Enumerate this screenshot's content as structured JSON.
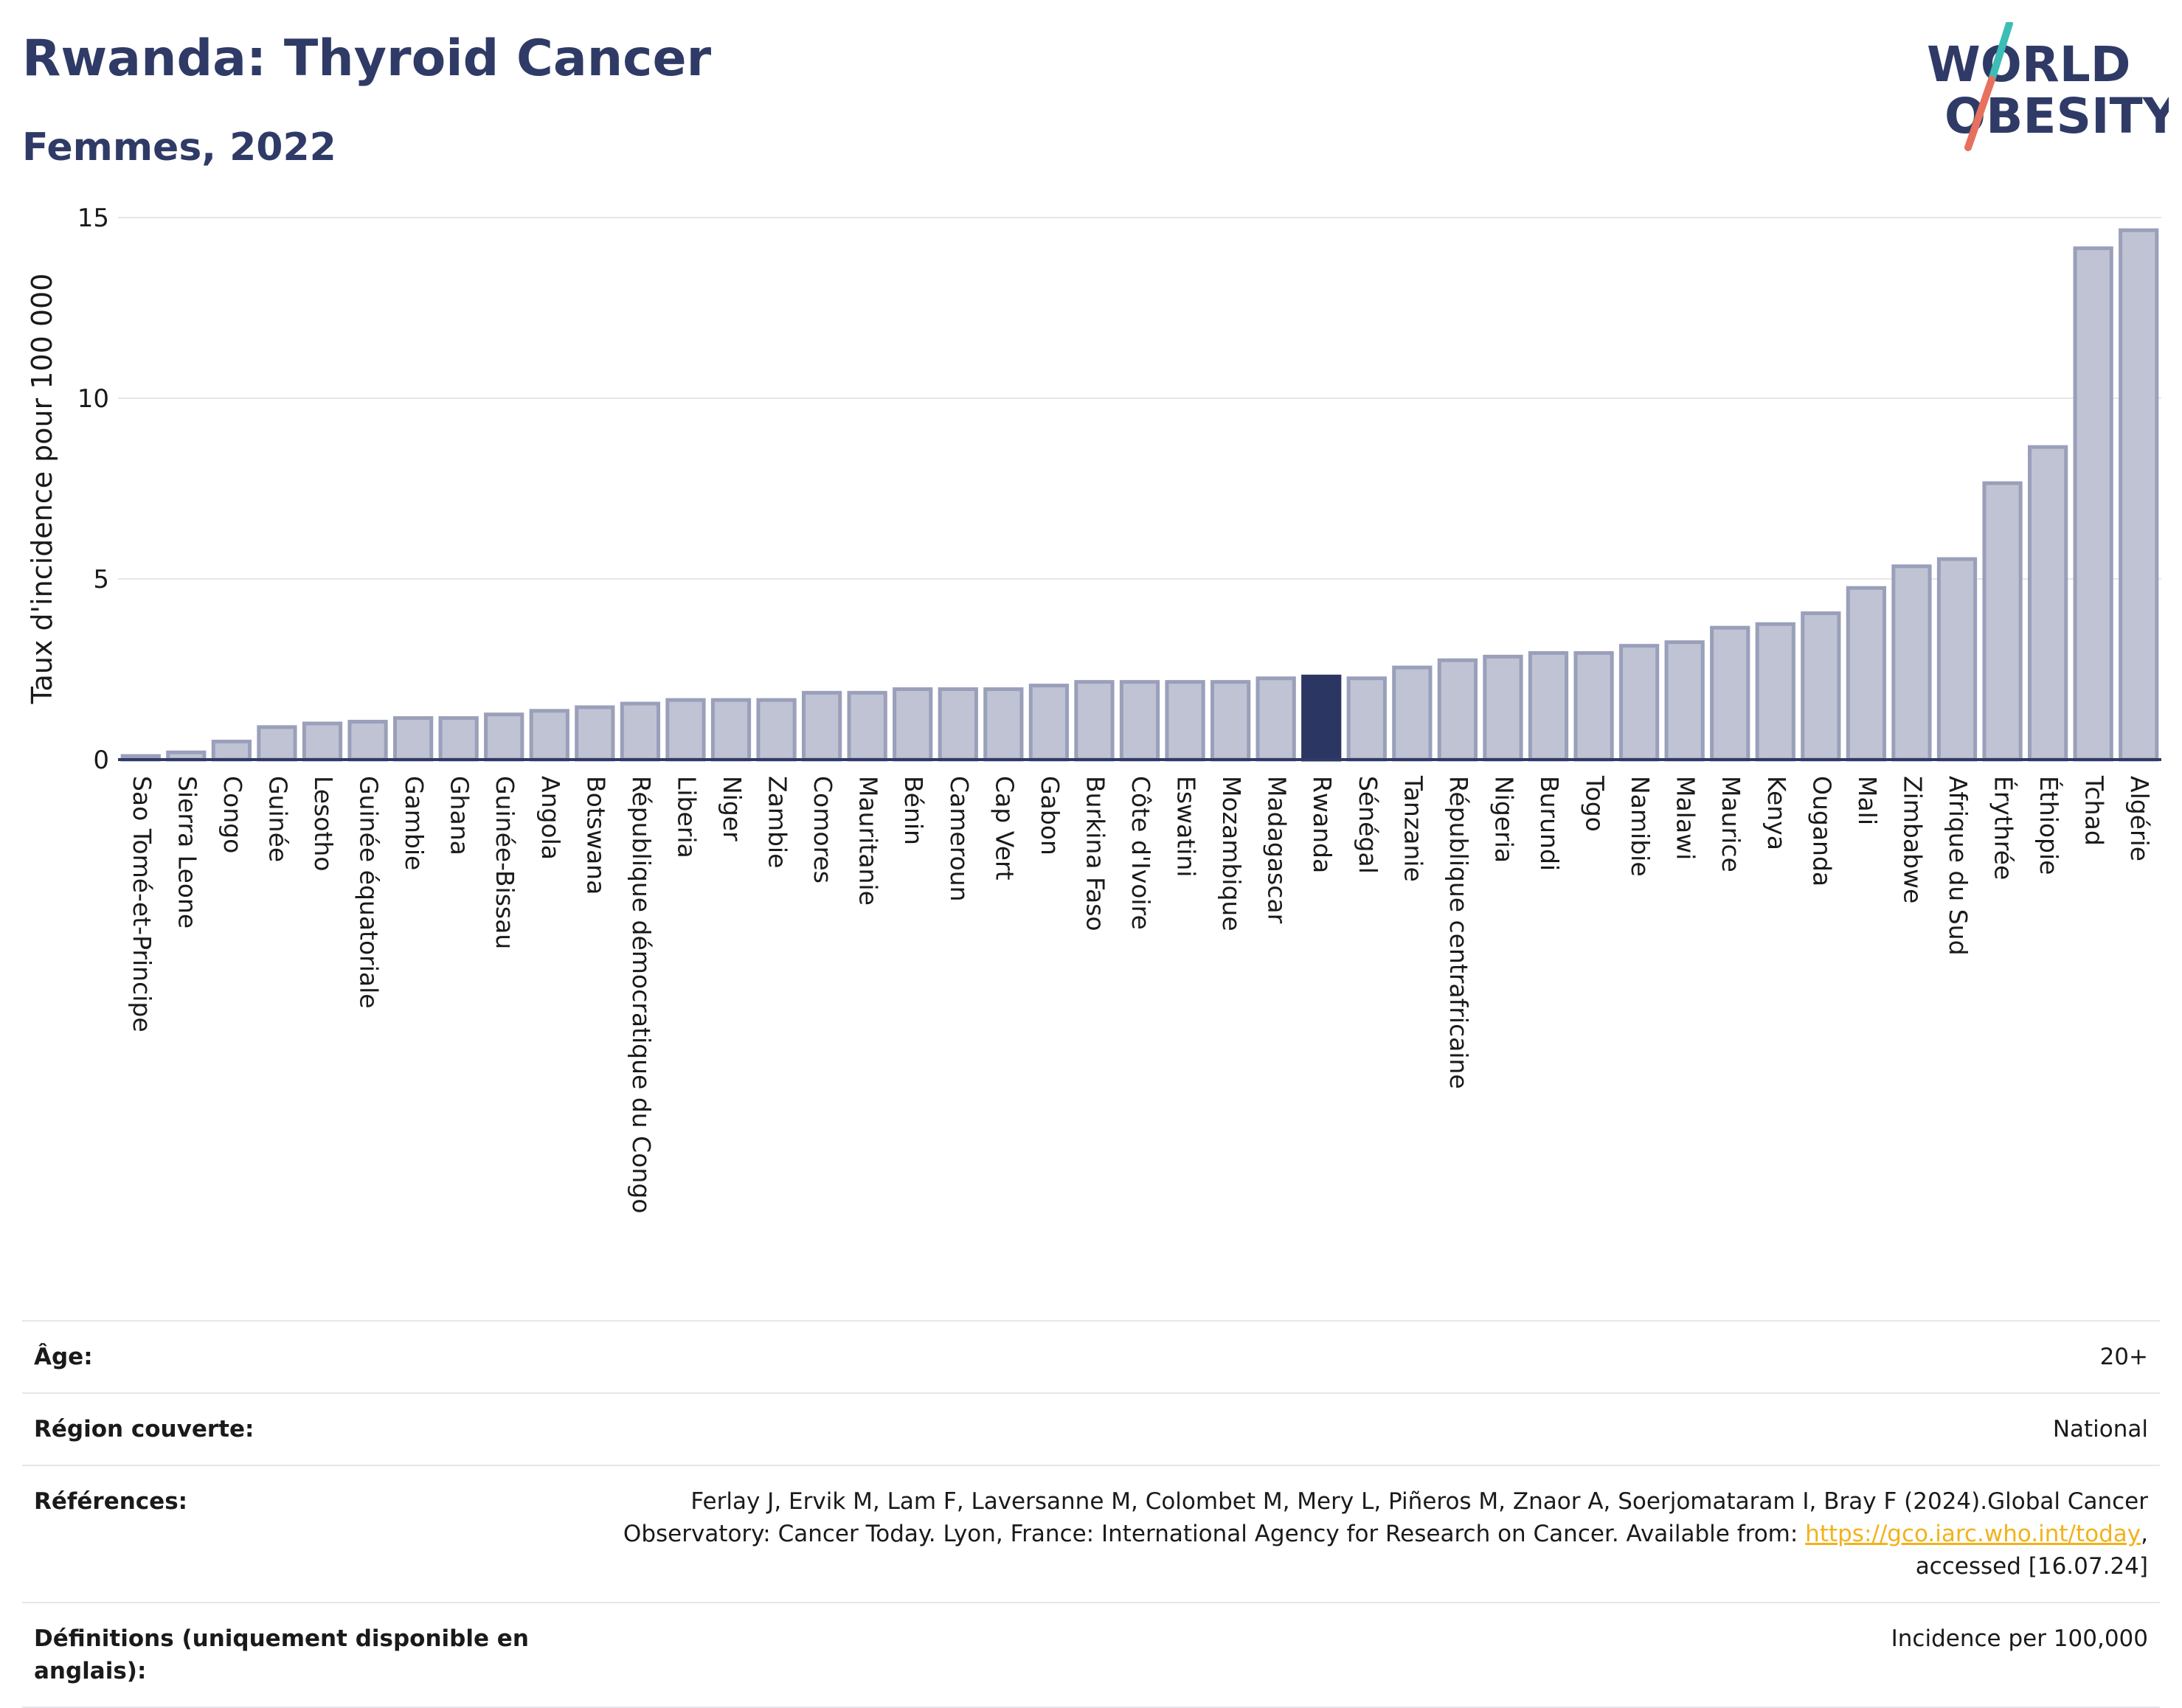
{
  "header": {
    "title": "Rwanda: Thyroid Cancer",
    "subtitle": "Femmes, 2022"
  },
  "logo": {
    "line1": "WORLD",
    "line2": "OBESITY"
  },
  "colors": {
    "highlight": "#2b3663",
    "bar": "#bfc3d3",
    "bar_outline": "#9a9fba",
    "axis": "#2f3b66",
    "grid": "#e6e6ea",
    "logo_text": "#2f3b66",
    "logo_slash_top": "#3cbdb5",
    "logo_slash_bottom": "#e8705f"
  },
  "chart_data": {
    "type": "bar",
    "ylabel": "Taux d'incidence pour 100 000",
    "ylim": [
      0,
      15
    ],
    "yticks": [
      0,
      5,
      10,
      15
    ],
    "grid": true,
    "highlight": "Rwanda",
    "categories": [
      "Sao Tomé-et-Principe",
      "Sierra Leone",
      "Congo",
      "Guinée",
      "Lesotho",
      "Guinée équatoriale",
      "Gambie",
      "Ghana",
      "Guinée-Bissau",
      "Angola",
      "Botswana",
      "République démocratique du Congo",
      "Liberia",
      "Niger",
      "Zambie",
      "Comores",
      "Mauritanie",
      "Bénin",
      "Cameroun",
      "Cap Vert",
      "Gabon",
      "Burkina Faso",
      "Côte d'Ivoire",
      "Eswatini",
      "Mozambique",
      "Madagascar",
      "Rwanda",
      "Sénégal",
      "Tanzanie",
      "République centrafricaine",
      "Nigeria",
      "Burundi",
      "Togo",
      "Namibie",
      "Malawi",
      "Maurice",
      "Kenya",
      "Ouganda",
      "Mali",
      "Zimbabwe",
      "Afrique du Sud",
      "Érythrée",
      "Éthiopie",
      "Tchad",
      "Algérie"
    ],
    "values": [
      0.1,
      0.2,
      0.5,
      0.9,
      1.0,
      1.05,
      1.15,
      1.15,
      1.25,
      1.35,
      1.45,
      1.55,
      1.65,
      1.65,
      1.65,
      1.85,
      1.85,
      1.95,
      1.95,
      1.95,
      2.05,
      2.15,
      2.15,
      2.15,
      2.15,
      2.25,
      2.3,
      2.25,
      2.55,
      2.75,
      2.85,
      2.95,
      2.95,
      3.15,
      3.25,
      3.65,
      3.75,
      4.05,
      4.75,
      5.35,
      5.55,
      7.65,
      8.65,
      14.15,
      14.65
    ]
  },
  "info": {
    "age_label": "Âge:",
    "age_value": "20+",
    "region_label": "Région couverte:",
    "region_value": "National",
    "refs_label": "Références:",
    "refs_line1": "Ferlay J, Ervik M, Lam F, Laversanne M, Colombet M, Mery L, Piñeros M, Znaor A, Soerjomataram I, Bray F (2024).Global Cancer",
    "refs_line2_pre": "Observatory: Cancer Today. Lyon, France: International Agency for Research on Cancer. Available from: ",
    "refs_link": "https://gco.iarc.who.int/today",
    "refs_line2_post": ",",
    "refs_line3": "accessed [16.07.24]",
    "defs_label": "Définitions (uniquement disponible en anglais):",
    "defs_value": "Incidence per 100,000"
  }
}
